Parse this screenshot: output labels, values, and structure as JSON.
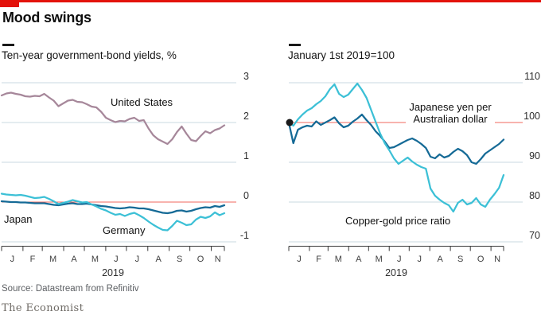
{
  "header": {
    "title": "Mood swings"
  },
  "source": "Source: Datastream from Refinitiv",
  "brand": "The Economist",
  "colors": {
    "accent_red": "#e3120b",
    "baseline_red": "#f0675d",
    "gridline": "#c8d8e2",
    "axis": "#3a3a3a",
    "tick_label": "#2d2d2d",
    "start_dot": "#1a1a1a"
  },
  "chart_data": [
    {
      "type": "line",
      "panel": "left",
      "title": "Ten-year government-bond yields, %",
      "x_tick_labels": [
        "J",
        "F",
        "M",
        "A",
        "M",
        "J",
        "J",
        "A",
        "S",
        "O",
        "N"
      ],
      "year": "2019",
      "ylim": [
        -1,
        3
      ],
      "yticks": [
        3,
        2,
        1,
        0,
        -1
      ],
      "red_tick": 0,
      "grid": true,
      "legend_position": "inline-labels",
      "series": [
        {
          "name": "United States",
          "color": "#a6879a",
          "values": [
            2.68,
            2.73,
            2.75,
            2.72,
            2.7,
            2.66,
            2.65,
            2.67,
            2.66,
            2.72,
            2.63,
            2.55,
            2.41,
            2.48,
            2.55,
            2.57,
            2.52,
            2.51,
            2.46,
            2.4,
            2.38,
            2.27,
            2.12,
            2.06,
            2.01,
            2.04,
            2.03,
            2.09,
            2.12,
            2.04,
            2.06,
            1.85,
            1.68,
            1.58,
            1.52,
            1.46,
            1.58,
            1.76,
            1.9,
            1.72,
            1.56,
            1.53,
            1.66,
            1.78,
            1.73,
            1.81,
            1.85,
            1.93
          ]
        },
        {
          "name": "Japan",
          "color": "#156a96",
          "values": [
            0.02,
            0.01,
            0.0,
            0.0,
            -0.01,
            -0.01,
            -0.02,
            -0.03,
            -0.03,
            -0.03,
            -0.05,
            -0.07,
            -0.08,
            -0.06,
            -0.04,
            -0.03,
            -0.05,
            -0.05,
            -0.04,
            -0.06,
            -0.08,
            -0.1,
            -0.11,
            -0.13,
            -0.15,
            -0.16,
            -0.15,
            -0.13,
            -0.14,
            -0.16,
            -0.16,
            -0.18,
            -0.21,
            -0.24,
            -0.27,
            -0.28,
            -0.26,
            -0.22,
            -0.21,
            -0.24,
            -0.22,
            -0.18,
            -0.15,
            -0.13,
            -0.14,
            -0.1,
            -0.12,
            -0.08
          ]
        },
        {
          "name": "Germany",
          "color": "#3cc0d6",
          "values": [
            0.21,
            0.19,
            0.18,
            0.17,
            0.18,
            0.16,
            0.13,
            0.1,
            0.11,
            0.13,
            0.08,
            0.02,
            -0.05,
            -0.02,
            0.01,
            0.05,
            0.02,
            -0.01,
            0.0,
            -0.06,
            -0.11,
            -0.17,
            -0.21,
            -0.27,
            -0.32,
            -0.3,
            -0.35,
            -0.3,
            -0.27,
            -0.33,
            -0.4,
            -0.49,
            -0.57,
            -0.64,
            -0.7,
            -0.71,
            -0.6,
            -0.47,
            -0.52,
            -0.58,
            -0.56,
            -0.44,
            -0.37,
            -0.4,
            -0.36,
            -0.26,
            -0.33,
            -0.28
          ]
        }
      ]
    },
    {
      "type": "line",
      "panel": "right",
      "title": "January 1st 2019=100",
      "x_tick_labels": [
        "J",
        "F",
        "M",
        "A",
        "M",
        "J",
        "J",
        "A",
        "S",
        "O",
        "N"
      ],
      "year": "2019",
      "ylim": [
        70,
        110
      ],
      "yticks": [
        110,
        100,
        90,
        80,
        70
      ],
      "red_tick": 100,
      "grid": true,
      "start_dot_value": 100,
      "legend_position": "inline-labels",
      "series": [
        {
          "name": "Japanese yen per Australian dollar",
          "color": "#156a96",
          "values": [
            100,
            94.8,
            98.2,
            98.8,
            99.2,
            99.0,
            100.3,
            99.4,
            100.0,
            100.6,
            101.3,
            99.8,
            98.8,
            99.2,
            100.2,
            101.0,
            102.0,
            100.6,
            99.4,
            97.8,
            96.6,
            95.2,
            93.6,
            93.8,
            94.4,
            95.0,
            95.6,
            96.0,
            95.4,
            94.6,
            93.6,
            91.4,
            91.0,
            92.0,
            91.2,
            91.6,
            92.6,
            93.4,
            92.8,
            91.8,
            90.0,
            89.6,
            90.8,
            92.2,
            93.0,
            93.8,
            94.6,
            95.7
          ]
        },
        {
          "name": "Copper-gold price ratio",
          "color": "#3cc0d6",
          "values": [
            100,
            99.2,
            100.8,
            102.0,
            103.0,
            103.6,
            104.6,
            105.4,
            106.6,
            108.4,
            109.6,
            107.2,
            106.4,
            107.0,
            108.4,
            109.8,
            108.2,
            106.2,
            103.2,
            100.2,
            97.2,
            94.8,
            93.0,
            91.0,
            89.6,
            90.4,
            91.2,
            90.2,
            89.4,
            88.8,
            88.4,
            83.4,
            81.6,
            80.6,
            79.8,
            79.2,
            77.6,
            79.8,
            80.6,
            79.4,
            79.8,
            81.0,
            79.4,
            78.8,
            80.6,
            82.0,
            83.6,
            86.8
          ]
        }
      ]
    }
  ]
}
